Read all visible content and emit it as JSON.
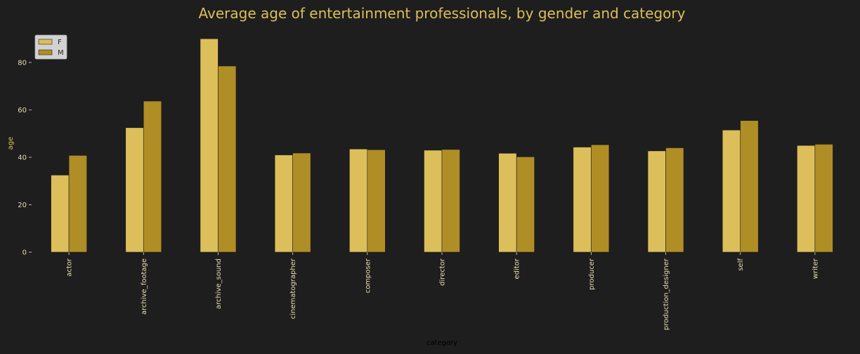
{
  "chart_data": {
    "type": "bar",
    "title": "Average age of entertainment professionals, by gender and category",
    "xlabel": "category",
    "ylabel": "age",
    "categories": [
      "actor",
      "archive_footage",
      "archive_sound",
      "cinematographer",
      "composer",
      "director",
      "editor",
      "producer",
      "production_designer",
      "self",
      "writer"
    ],
    "series": [
      {
        "name": "F",
        "color": "#dcbf5a",
        "values": [
          32.5,
          52.5,
          90.0,
          41.0,
          43.5,
          43.0,
          41.7,
          44.3,
          42.7,
          51.5,
          45.0
        ]
      },
      {
        "name": "M",
        "color": "#b08e26",
        "values": [
          40.8,
          63.7,
          78.5,
          41.8,
          43.2,
          43.3,
          40.2,
          45.3,
          44.0,
          55.5,
          45.5
        ]
      }
    ],
    "yticks": [
      0,
      20,
      40,
      60,
      80
    ],
    "ylim": [
      0,
      94.5
    ],
    "grid": false,
    "legend_position": "top-left",
    "colors": {
      "background": "#1e1e1e",
      "text": "#dcbf5a",
      "tick_text": "#e8dcb0",
      "axis_label_text": "#000000",
      "legend_bg": "#d2d2d2",
      "bar_edge": "#1e1e1e"
    }
  }
}
